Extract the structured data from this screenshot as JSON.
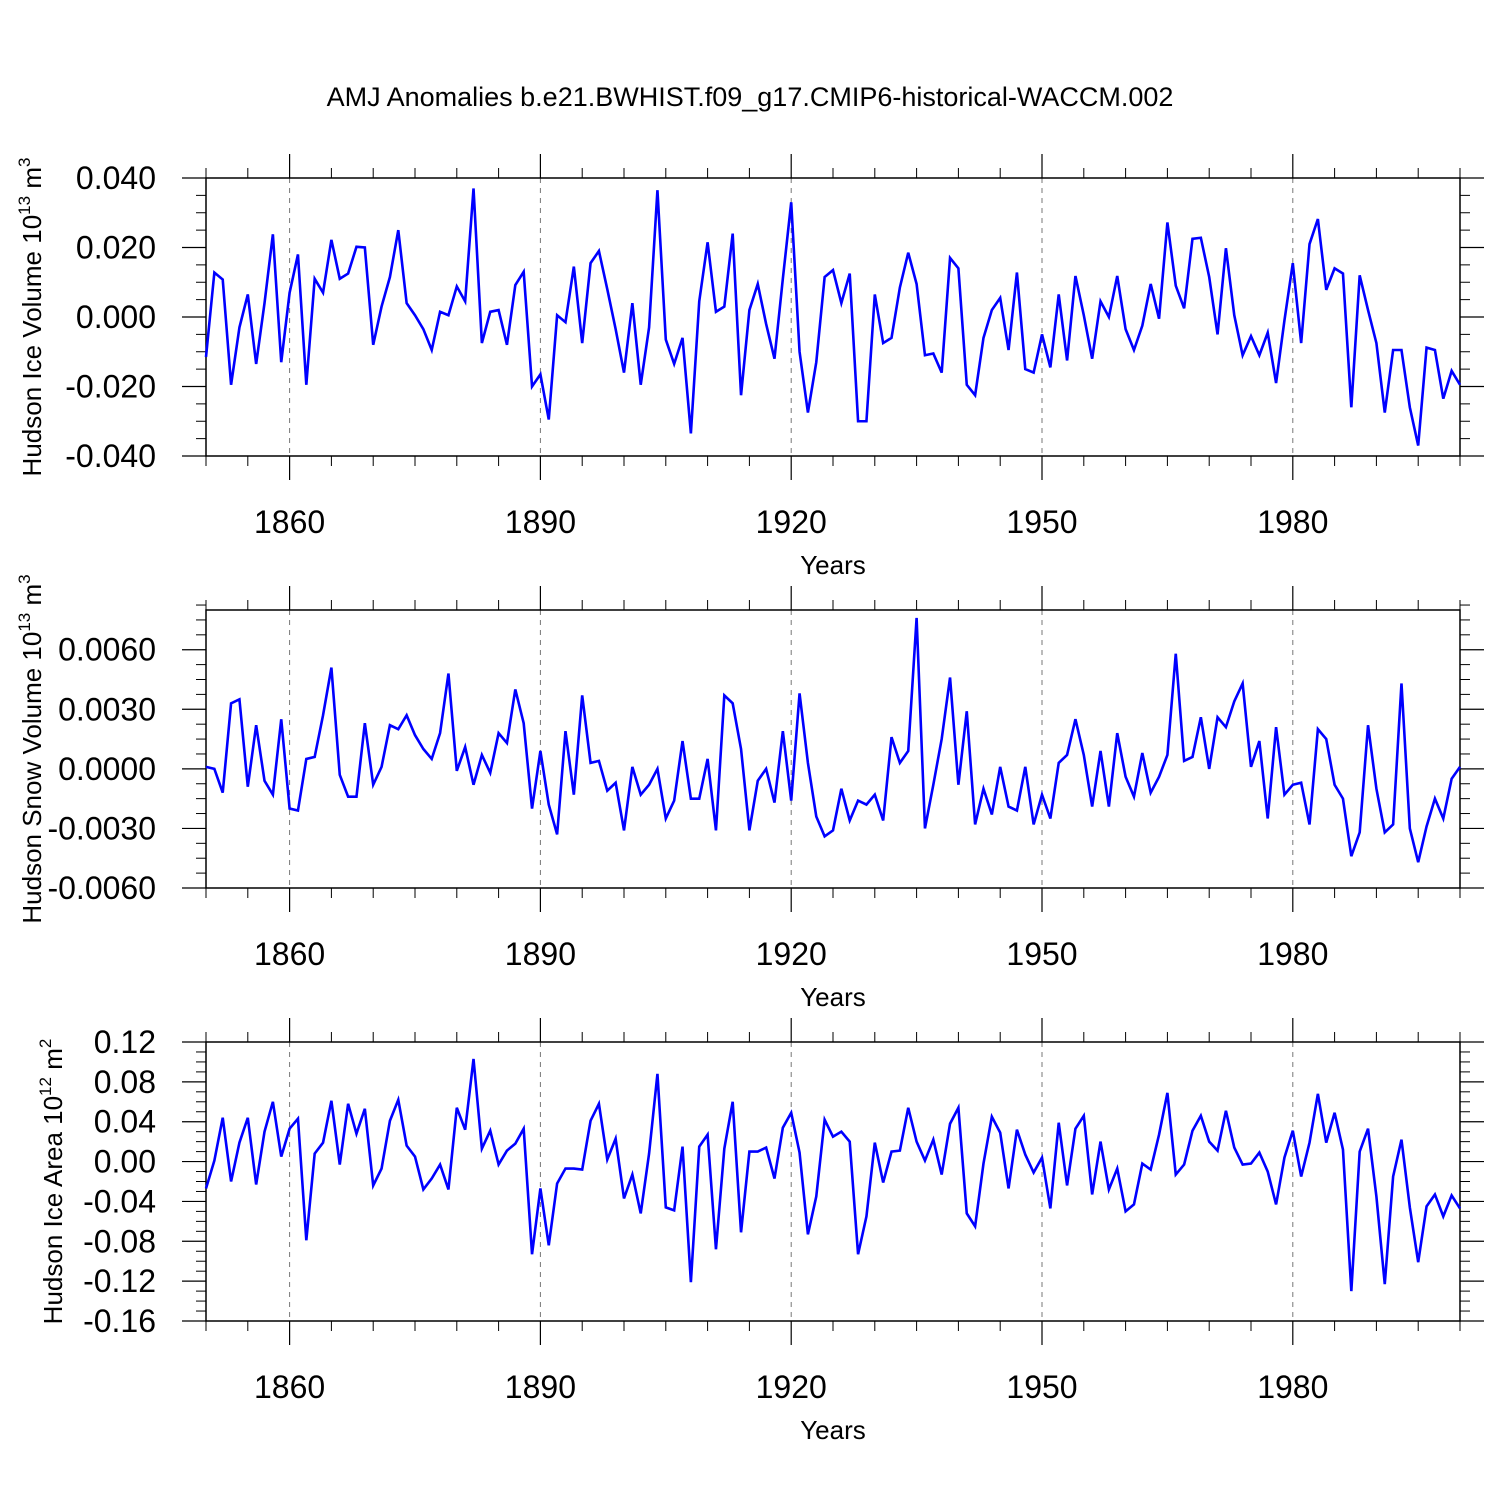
{
  "title": "AMJ Anomalies b.e21.BWHIST.f09_g17.CMIP6-historical-WACCM.002",
  "chart_data": [
    {
      "type": "line",
      "xlabel": "Years",
      "ylabel": "Hudson Ice Volume 10",
      "ylabel_sup": "13",
      "ylabel_unit": "m",
      "ylabel_unit_sup": "3",
      "ylim": [
        -0.04,
        0.04
      ],
      "y_ticks": [
        -0.04,
        -0.02,
        0.0,
        0.02,
        0.04
      ],
      "y_tick_labels": [
        "-0.040",
        "-0.020",
        "0.000",
        "0.020",
        "0.040"
      ],
      "xlim": [
        1850,
        2000
      ],
      "x_ticks": [
        1860,
        1890,
        1920,
        1950,
        1980
      ],
      "x_tick_labels": [
        "1860",
        "1890",
        "1920",
        "1950",
        "1980"
      ],
      "series": [
        {
          "name": "Hudson Ice Volume",
          "color": "#0000ff",
          "x_start": 1850,
          "values": [
            -0.0115,
            0.0128,
            0.0108,
            -0.0195,
            -0.003,
            0.0065,
            -0.0135,
            0.004,
            0.0238,
            -0.013,
            0.007,
            0.018,
            -0.0195,
            0.011,
            0.007,
            0.0222,
            0.011,
            0.0125,
            0.0202,
            0.02,
            -0.008,
            0.003,
            0.0115,
            0.025,
            0.004,
            0.0005,
            -0.0035,
            -0.0095,
            0.0015,
            0.0005,
            0.0088,
            0.0045,
            0.037,
            -0.0075,
            0.0015,
            0.002,
            -0.008,
            0.0092,
            0.013,
            -0.02,
            -0.0165,
            -0.0295,
            0.0005,
            -0.0015,
            0.0145,
            -0.0075,
            0.0155,
            0.019,
            0.008,
            -0.0035,
            -0.016,
            0.004,
            -0.0195,
            -0.003,
            0.0365,
            -0.0065,
            -0.0135,
            -0.006,
            -0.0335,
            0.0045,
            0.0215,
            0.0015,
            0.003,
            0.024,
            -0.0225,
            0.002,
            0.0095,
            -0.002,
            -0.012,
            0.011,
            0.033,
            -0.01,
            -0.0275,
            -0.013,
            0.0115,
            0.0135,
            0.004,
            0.0125,
            -0.03,
            -0.03,
            0.0065,
            -0.0075,
            -0.006,
            0.0085,
            0.0185,
            0.0095,
            -0.011,
            -0.0105,
            -0.016,
            0.017,
            0.014,
            -0.0195,
            -0.0225,
            -0.006,
            0.002,
            0.0055,
            -0.0095,
            0.0128,
            -0.015,
            -0.016,
            -0.005,
            -0.0145,
            0.0065,
            -0.0125,
            0.0118,
            0.0005,
            -0.012,
            0.0045,
            0.0,
            0.0118,
            -0.0035,
            -0.0095,
            -0.0025,
            0.0095,
            -0.0005,
            0.0272,
            0.009,
            0.0025,
            0.0225,
            0.0228,
            0.0115,
            -0.005,
            0.0198,
            0.0005,
            -0.011,
            -0.0055,
            -0.011,
            -0.0045,
            -0.019,
            -0.001,
            0.0155,
            -0.0075,
            0.021,
            0.0282,
            0.0078,
            0.014,
            0.0125,
            -0.026,
            0.012,
            0.002,
            -0.0075,
            -0.0275,
            -0.0095,
            -0.0095,
            -0.026,
            -0.037,
            -0.0088,
            -0.0095,
            -0.0235,
            -0.0155,
            -0.0195
          ]
        }
      ]
    },
    {
      "type": "line",
      "xlabel": "Years",
      "ylabel": "Hudson Snow Volume 10",
      "ylabel_sup": "13",
      "ylabel_unit": "m",
      "ylabel_unit_sup": "3",
      "ylim": [
        -0.006,
        0.008
      ],
      "y_ticks": [
        -0.006,
        -0.003,
        0.0,
        0.003,
        0.006
      ],
      "y_tick_labels": [
        "-0.0060",
        "-0.0030",
        "0.0000",
        "0.0030",
        "0.0060"
      ],
      "xlim": [
        1850,
        2000
      ],
      "x_ticks": [
        1860,
        1890,
        1920,
        1950,
        1980
      ],
      "x_tick_labels": [
        "1860",
        "1890",
        "1920",
        "1950",
        "1980"
      ],
      "series": [
        {
          "name": "Hudson Snow Volume",
          "color": "#0000ff",
          "x_start": 1850,
          "values": [
            0.0001,
            0.0,
            -0.0012,
            0.0033,
            0.0035,
            -0.0009,
            0.0022,
            -0.0006,
            -0.0013,
            0.0025,
            -0.002,
            -0.0021,
            0.0005,
            0.0006,
            0.0027,
            0.0051,
            -0.0003,
            -0.0014,
            -0.0014,
            0.0023,
            -0.0008,
            0.0001,
            0.0022,
            0.002,
            0.0027,
            0.0017,
            0.001,
            0.0005,
            0.0018,
            0.0048,
            -0.0001,
            0.0011,
            -0.0008,
            0.0007,
            -0.0002,
            0.0018,
            0.0013,
            0.004,
            0.0023,
            -0.002,
            0.0009,
            -0.0018,
            -0.0033,
            0.0019,
            -0.0013,
            0.0037,
            0.0003,
            0.0004,
            -0.0011,
            -0.0007,
            -0.0031,
            0.0001,
            -0.0013,
            -0.0008,
            0.0,
            -0.0025,
            -0.0016,
            0.0014,
            -0.0015,
            -0.0015,
            0.0005,
            -0.0031,
            0.0037,
            0.0033,
            0.001,
            -0.0031,
            -0.0006,
            0.0,
            -0.0017,
            0.0019,
            -0.0016,
            0.0038,
            0.0003,
            -0.0024,
            -0.0034,
            -0.0031,
            -0.001,
            -0.0026,
            -0.0016,
            -0.0018,
            -0.0013,
            -0.0026,
            0.0016,
            0.0003,
            0.0009,
            0.0076,
            -0.003,
            -0.0008,
            0.0015,
            0.0046,
            -0.0008,
            0.0029,
            -0.0028,
            -0.001,
            -0.0023,
            0.0001,
            -0.0019,
            -0.0021,
            0.0001,
            -0.0028,
            -0.0013,
            -0.0025,
            0.0003,
            0.0007,
            0.0025,
            0.0007,
            -0.0019,
            0.0009,
            -0.0019,
            0.0018,
            -0.0004,
            -0.0014,
            0.0008,
            -0.0012,
            -0.0004,
            0.0007,
            0.0058,
            0.0004,
            0.0006,
            0.0026,
            0.0,
            0.0026,
            0.0021,
            0.0034,
            0.0043,
            0.0001,
            0.0014,
            -0.0025,
            0.0021,
            -0.0013,
            -0.0008,
            -0.0007,
            -0.0028,
            0.002,
            0.0015,
            -0.0008,
            -0.0015,
            -0.0044,
            -0.0032,
            0.0022,
            -0.001,
            -0.0032,
            -0.0028,
            0.0043,
            -0.003,
            -0.0047,
            -0.0029,
            -0.0015,
            -0.0025,
            -0.0005,
            0.0001
          ]
        }
      ]
    },
    {
      "type": "line",
      "xlabel": "Years",
      "ylabel": "Hudson Ice Area 10",
      "ylabel_sup": "12",
      "ylabel_unit": "m",
      "ylabel_unit_sup": "2",
      "ylim": [
        -0.16,
        0.12
      ],
      "y_ticks": [
        -0.16,
        -0.12,
        -0.08,
        -0.04,
        0.0,
        0.04,
        0.08,
        0.12
      ],
      "y_tick_labels": [
        "-0.16",
        "-0.12",
        "-0.08",
        "-0.04",
        "0.00",
        "0.04",
        "0.08",
        "0.12"
      ],
      "xlim": [
        1850,
        2000
      ],
      "x_ticks": [
        1860,
        1890,
        1920,
        1950,
        1980
      ],
      "x_tick_labels": [
        "1860",
        "1890",
        "1920",
        "1950",
        "1980"
      ],
      "series": [
        {
          "name": "Hudson Ice Area",
          "color": "#0000ff",
          "x_start": 1850,
          "values": [
            -0.027,
            0.001,
            0.044,
            -0.02,
            0.019,
            0.044,
            -0.023,
            0.03,
            0.06,
            0.005,
            0.033,
            0.043,
            -0.079,
            0.008,
            0.019,
            0.061,
            -0.003,
            0.058,
            0.028,
            0.053,
            -0.024,
            -0.007,
            0.041,
            0.062,
            0.016,
            0.005,
            -0.028,
            -0.017,
            -0.003,
            -0.028,
            0.054,
            0.032,
            0.103,
            0.013,
            0.031,
            -0.003,
            0.011,
            0.018,
            0.033,
            -0.093,
            -0.027,
            -0.084,
            -0.022,
            -0.007,
            -0.007,
            -0.008,
            0.041,
            0.058,
            0.002,
            0.023,
            -0.037,
            -0.013,
            -0.052,
            0.008,
            0.088,
            -0.046,
            -0.049,
            0.015,
            -0.121,
            0.015,
            0.027,
            -0.088,
            0.013,
            0.06,
            -0.071,
            0.01,
            0.01,
            0.014,
            -0.017,
            0.034,
            0.049,
            0.009,
            -0.073,
            -0.035,
            0.042,
            0.025,
            0.03,
            0.02,
            -0.093,
            -0.055,
            0.019,
            -0.021,
            0.01,
            0.011,
            0.054,
            0.02,
            0.001,
            0.022,
            -0.013,
            0.038,
            0.054,
            -0.052,
            -0.065,
            -0.002,
            0.045,
            0.029,
            -0.027,
            0.032,
            0.007,
            -0.011,
            0.004,
            -0.047,
            0.039,
            -0.024,
            0.033,
            0.046,
            -0.033,
            0.02,
            -0.028,
            -0.007,
            -0.05,
            -0.043,
            -0.002,
            -0.008,
            0.027,
            0.069,
            -0.013,
            -0.003,
            0.031,
            0.046,
            0.02,
            0.011,
            0.051,
            0.014,
            -0.003,
            -0.002,
            0.009,
            -0.01,
            -0.043,
            0.004,
            0.031,
            -0.015,
            0.019,
            0.068,
            0.019,
            0.049,
            0.012,
            -0.13,
            0.01,
            0.033,
            -0.035,
            -0.123,
            -0.015,
            0.022,
            -0.046,
            -0.101,
            -0.045,
            -0.033,
            -0.055,
            -0.034,
            -0.047
          ]
        }
      ]
    }
  ]
}
